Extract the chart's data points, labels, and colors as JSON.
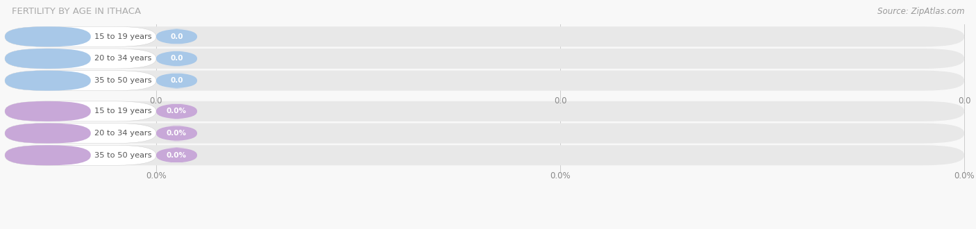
{
  "title": "FERTILITY BY AGE IN ITHACA",
  "source": "Source: ZipAtlas.com",
  "background_color": "#f8f8f8",
  "top_section": {
    "categories": [
      "15 to 19 years",
      "20 to 34 years",
      "35 to 50 years"
    ],
    "values": [
      0.0,
      0.0,
      0.0
    ],
    "bar_color": "#a8c8e8",
    "value_labels": [
      "0.0",
      "0.0",
      "0.0"
    ],
    "tick_labels": [
      "0.0",
      "0.0",
      "0.0"
    ]
  },
  "bottom_section": {
    "categories": [
      "15 to 19 years",
      "20 to 34 years",
      "35 to 50 years"
    ],
    "values": [
      0.0,
      0.0,
      0.0
    ],
    "bar_color": "#c8a8d8",
    "value_labels": [
      "0.0%",
      "0.0%",
      "0.0%"
    ],
    "tick_labels": [
      "0.0%",
      "0.0%",
      "0.0%"
    ]
  },
  "figsize": [
    14.06,
    3.3
  ],
  "dpi": 100
}
